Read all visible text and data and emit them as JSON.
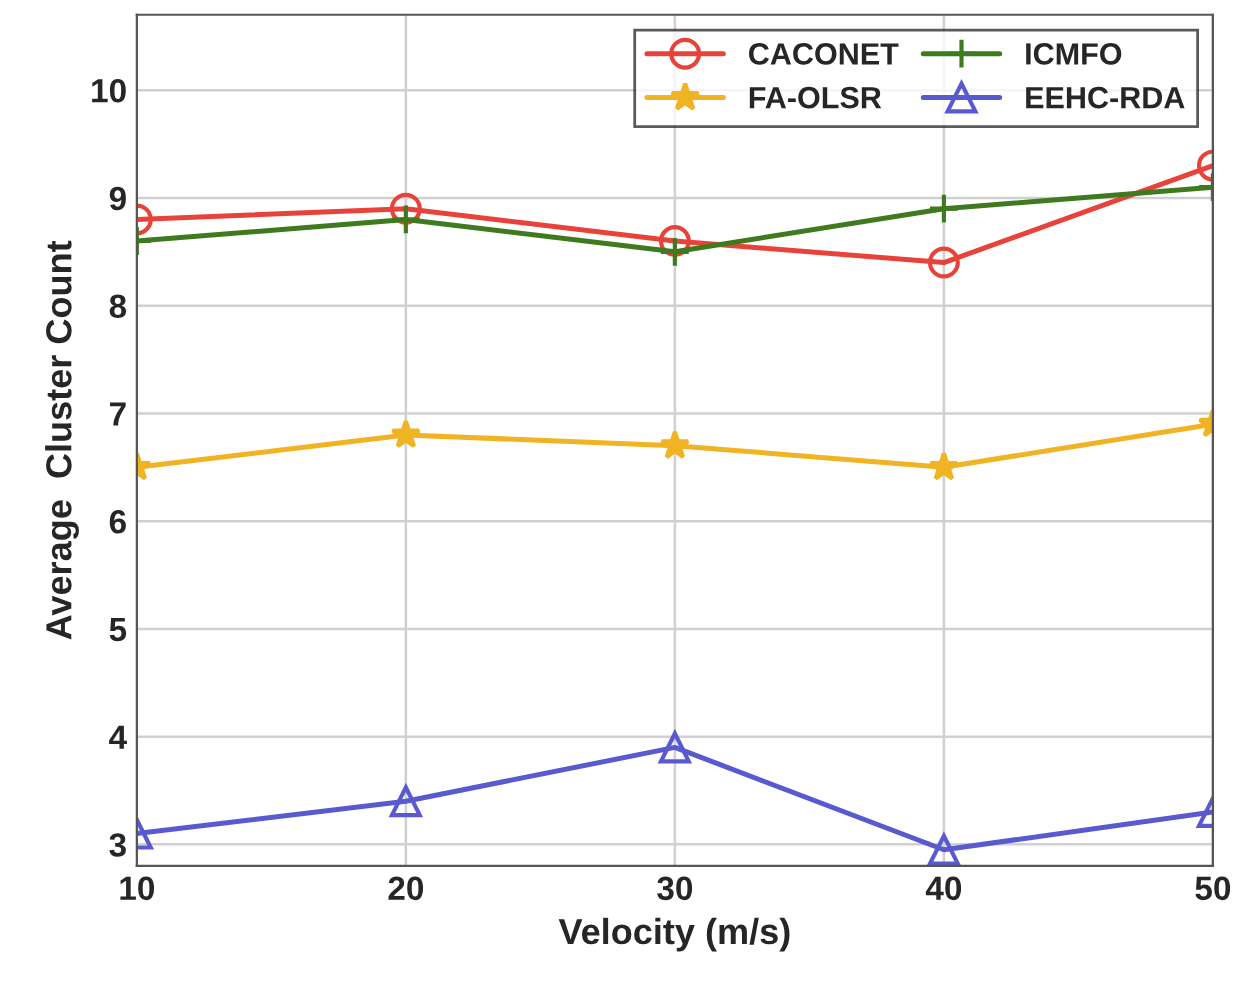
{
  "chart_data": {
    "type": "line",
    "xlabel": "Velocity (m/s)",
    "ylabel": "Average  Cluster Count",
    "x": [
      10,
      20,
      30,
      40,
      50
    ],
    "series": [
      {
        "name": "CACONET",
        "color": "#e8433a",
        "marker": "circle",
        "values": [
          8.8,
          8.9,
          8.6,
          8.4,
          9.3
        ]
      },
      {
        "name": "FA-OLSR",
        "color": "#f0b323",
        "marker": "star",
        "values": [
          6.5,
          6.8,
          6.7,
          6.5,
          6.9
        ]
      },
      {
        "name": "ICMFO",
        "color": "#3f7a1f",
        "marker": "cross",
        "values": [
          8.6,
          8.8,
          8.5,
          8.9,
          9.1
        ]
      },
      {
        "name": "EEHC-RDA",
        "color": "#5a5ad0",
        "marker": "triangle",
        "values": [
          3.1,
          3.4,
          3.9,
          2.95,
          3.3
        ]
      }
    ],
    "xlim": [
      10,
      50
    ],
    "xticks": [
      10,
      20,
      30,
      40,
      50
    ],
    "ylim": [
      2.8,
      10.7
    ],
    "yticks": [
      3,
      4,
      5,
      6,
      7,
      8,
      9,
      10
    ],
    "grid": true,
    "legend": "top right",
    "line_style": "solid"
  }
}
